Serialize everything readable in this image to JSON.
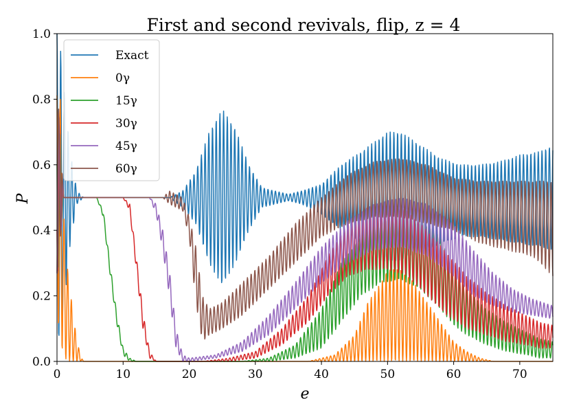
{
  "chart_data": {
    "type": "line",
    "title": "First and second revivals, flip, z = 4",
    "xlabel": "e",
    "ylabel": "P",
    "xlim": [
      0,
      75
    ],
    "ylim": [
      0,
      1
    ],
    "xticks": [
      0,
      10,
      20,
      30,
      40,
      50,
      60,
      70
    ],
    "yticks": [
      0.0,
      0.2,
      0.4,
      0.6,
      0.8,
      1.0
    ],
    "xtick_labels": [
      "0",
      "10",
      "20",
      "30",
      "40",
      "50",
      "60",
      "70"
    ],
    "ytick_labels": [
      "0.0",
      "0.2",
      "0.4",
      "0.6",
      "0.8",
      "1.0"
    ],
    "grid": false,
    "legend_position": "top-left",
    "series": [
      {
        "name": "Exact",
        "color": "#1f77b4",
        "envelope_upper": [
          [
            0,
            1.0
          ],
          [
            0.5,
            0.96
          ],
          [
            1,
            0.85
          ],
          [
            2,
            0.64
          ],
          [
            3,
            0.52
          ],
          [
            4,
            0.5
          ],
          [
            17,
            0.5
          ],
          [
            19,
            0.52
          ],
          [
            21,
            0.58
          ],
          [
            23,
            0.7
          ],
          [
            25,
            0.77
          ],
          [
            27,
            0.71
          ],
          [
            29,
            0.6
          ],
          [
            31,
            0.53
          ],
          [
            33,
            0.52
          ],
          [
            35,
            0.51
          ],
          [
            37,
            0.52
          ],
          [
            40,
            0.54
          ],
          [
            43,
            0.6
          ],
          [
            46,
            0.64
          ],
          [
            48,
            0.67
          ],
          [
            50,
            0.7
          ],
          [
            52,
            0.7
          ],
          [
            55,
            0.66
          ],
          [
            58,
            0.62
          ],
          [
            61,
            0.6
          ],
          [
            64,
            0.6
          ],
          [
            67,
            0.61
          ],
          [
            70,
            0.63
          ],
          [
            73,
            0.64
          ],
          [
            75,
            0.66
          ]
        ],
        "envelope_lower": [
          [
            0,
            0.02
          ],
          [
            0.5,
            0.1
          ],
          [
            1,
            0.15
          ],
          [
            2,
            0.36
          ],
          [
            3,
            0.48
          ],
          [
            4,
            0.5
          ],
          [
            17,
            0.5
          ],
          [
            19,
            0.47
          ],
          [
            21,
            0.42
          ],
          [
            23,
            0.3
          ],
          [
            25,
            0.23
          ],
          [
            27,
            0.3
          ],
          [
            29,
            0.4
          ],
          [
            31,
            0.47
          ],
          [
            33,
            0.48
          ],
          [
            35,
            0.49
          ],
          [
            37,
            0.48
          ],
          [
            40,
            0.45
          ],
          [
            43,
            0.4
          ],
          [
            46,
            0.36
          ],
          [
            48,
            0.32
          ],
          [
            50,
            0.3
          ],
          [
            52,
            0.31
          ],
          [
            55,
            0.33
          ],
          [
            58,
            0.36
          ],
          [
            61,
            0.38
          ],
          [
            64,
            0.38
          ],
          [
            67,
            0.37
          ],
          [
            70,
            0.36
          ],
          [
            73,
            0.35
          ],
          [
            75,
            0.34
          ]
        ],
        "oscillation_period": 0.56
      },
      {
        "name": "0γ",
        "color": "#ff7f0e",
        "envelope_upper": [
          [
            0,
            0.9
          ],
          [
            0.5,
            0.8
          ],
          [
            1,
            0.45
          ],
          [
            1.5,
            0.3
          ],
          [
            2,
            0.22
          ],
          [
            2.5,
            0.13
          ],
          [
            3,
            0.07
          ],
          [
            3.5,
            0.02
          ],
          [
            4,
            0.0
          ],
          [
            38,
            0.0
          ],
          [
            42,
            0.02
          ],
          [
            45,
            0.08
          ],
          [
            47,
            0.18
          ],
          [
            49,
            0.24
          ],
          [
            50,
            0.28
          ],
          [
            52,
            0.28
          ],
          [
            54,
            0.24
          ],
          [
            56,
            0.18
          ],
          [
            58,
            0.12
          ],
          [
            60,
            0.06
          ],
          [
            62,
            0.03
          ],
          [
            64,
            0.01
          ],
          [
            66,
            0.0
          ],
          [
            75,
            0.0
          ]
        ],
        "envelope_lower": [
          [
            0,
            0.15
          ],
          [
            0.5,
            0.05
          ],
          [
            1,
            0.02
          ],
          [
            1.5,
            0.0
          ],
          [
            75,
            0.0
          ]
        ],
        "oscillation_period": 0.56
      },
      {
        "name": "15γ",
        "color": "#2ca02c",
        "envelope_upper": [
          [
            0,
            0.85
          ],
          [
            1,
            0.5
          ],
          [
            6,
            0.5
          ],
          [
            7,
            0.46
          ],
          [
            8,
            0.3
          ],
          [
            9,
            0.15
          ],
          [
            10,
            0.04
          ],
          [
            11,
            0.01
          ],
          [
            12,
            0.0
          ],
          [
            28,
            0.0
          ],
          [
            32,
            0.01
          ],
          [
            36,
            0.05
          ],
          [
            40,
            0.16
          ],
          [
            43,
            0.3
          ],
          [
            46,
            0.38
          ],
          [
            49,
            0.43
          ],
          [
            52,
            0.45
          ],
          [
            55,
            0.43
          ],
          [
            58,
            0.38
          ],
          [
            60,
            0.28
          ],
          [
            62,
            0.22
          ],
          [
            65,
            0.16
          ],
          [
            68,
            0.12
          ],
          [
            71,
            0.09
          ],
          [
            73,
            0.07
          ],
          [
            75,
            0.06
          ]
        ],
        "envelope_lower": [
          [
            0,
            0.25
          ],
          [
            1,
            0.5
          ],
          [
            6,
            0.5
          ],
          [
            7,
            0.44
          ],
          [
            8,
            0.27
          ],
          [
            9,
            0.12
          ],
          [
            10,
            0.02
          ],
          [
            11,
            0.0
          ],
          [
            28,
            0.0
          ],
          [
            32,
            0.0
          ],
          [
            36,
            0.01
          ],
          [
            40,
            0.04
          ],
          [
            43,
            0.12
          ],
          [
            46,
            0.2
          ],
          [
            49,
            0.24
          ],
          [
            52,
            0.25
          ],
          [
            55,
            0.22
          ],
          [
            58,
            0.16
          ],
          [
            60,
            0.11
          ],
          [
            62,
            0.08
          ],
          [
            65,
            0.05
          ],
          [
            68,
            0.03
          ],
          [
            71,
            0.02
          ],
          [
            73,
            0.01
          ],
          [
            75,
            0.01
          ]
        ],
        "oscillation_period": 0.56
      },
      {
        "name": "30γ",
        "color": "#d62728",
        "envelope_upper": [
          [
            0,
            0.85
          ],
          [
            1,
            0.5
          ],
          [
            10,
            0.5
          ],
          [
            11,
            0.48
          ],
          [
            12,
            0.32
          ],
          [
            13,
            0.15
          ],
          [
            14,
            0.03
          ],
          [
            15,
            0.0
          ],
          [
            22,
            0.0
          ],
          [
            26,
            0.01
          ],
          [
            30,
            0.03
          ],
          [
            34,
            0.1
          ],
          [
            38,
            0.2
          ],
          [
            41,
            0.32
          ],
          [
            44,
            0.42
          ],
          [
            47,
            0.47
          ],
          [
            50,
            0.48
          ],
          [
            53,
            0.46
          ],
          [
            56,
            0.4
          ],
          [
            59,
            0.33
          ],
          [
            62,
            0.26
          ],
          [
            65,
            0.21
          ],
          [
            68,
            0.17
          ],
          [
            71,
            0.14
          ],
          [
            73,
            0.12
          ],
          [
            75,
            0.11
          ]
        ],
        "envelope_lower": [
          [
            0,
            0.25
          ],
          [
            1,
            0.5
          ],
          [
            10,
            0.5
          ],
          [
            11,
            0.46
          ],
          [
            12,
            0.28
          ],
          [
            13,
            0.1
          ],
          [
            14,
            0.01
          ],
          [
            15,
            0.0
          ],
          [
            22,
            0.0
          ],
          [
            26,
            0.0
          ],
          [
            30,
            0.01
          ],
          [
            34,
            0.05
          ],
          [
            38,
            0.12
          ],
          [
            41,
            0.2
          ],
          [
            44,
            0.26
          ],
          [
            47,
            0.28
          ],
          [
            50,
            0.28
          ],
          [
            53,
            0.26
          ],
          [
            56,
            0.2
          ],
          [
            59,
            0.14
          ],
          [
            62,
            0.1
          ],
          [
            65,
            0.08
          ],
          [
            68,
            0.06
          ],
          [
            71,
            0.05
          ],
          [
            73,
            0.04
          ],
          [
            75,
            0.04
          ]
        ],
        "oscillation_period": 0.56
      },
      {
        "name": "45γ",
        "color": "#9467bd",
        "envelope_upper": [
          [
            0,
            0.85
          ],
          [
            1,
            0.5
          ],
          [
            14,
            0.5
          ],
          [
            15,
            0.48
          ],
          [
            16,
            0.4
          ],
          [
            17,
            0.28
          ],
          [
            18,
            0.1
          ],
          [
            19,
            0.02
          ],
          [
            20,
            0.01
          ],
          [
            24,
            0.02
          ],
          [
            28,
            0.06
          ],
          [
            32,
            0.14
          ],
          [
            36,
            0.24
          ],
          [
            40,
            0.35
          ],
          [
            44,
            0.43
          ],
          [
            48,
            0.48
          ],
          [
            52,
            0.5
          ],
          [
            56,
            0.48
          ],
          [
            60,
            0.42
          ],
          [
            63,
            0.34
          ],
          [
            66,
            0.27
          ],
          [
            69,
            0.22
          ],
          [
            72,
            0.19
          ],
          [
            75,
            0.17
          ]
        ],
        "envelope_lower": [
          [
            0,
            0.25
          ],
          [
            1,
            0.5
          ],
          [
            14,
            0.5
          ],
          [
            15,
            0.45
          ],
          [
            16,
            0.34
          ],
          [
            17,
            0.2
          ],
          [
            18,
            0.04
          ],
          [
            19,
            0.0
          ],
          [
            20,
            0.0
          ],
          [
            24,
            0.01
          ],
          [
            28,
            0.03
          ],
          [
            32,
            0.08
          ],
          [
            36,
            0.16
          ],
          [
            40,
            0.24
          ],
          [
            44,
            0.3
          ],
          [
            48,
            0.34
          ],
          [
            52,
            0.35
          ],
          [
            56,
            0.32
          ],
          [
            60,
            0.26
          ],
          [
            63,
            0.2
          ],
          [
            66,
            0.17
          ],
          [
            69,
            0.15
          ],
          [
            72,
            0.14
          ],
          [
            75,
            0.13
          ]
        ],
        "oscillation_period": 0.56
      },
      {
        "name": "60γ",
        "color": "#8c564b",
        "envelope_upper": [
          [
            0,
            0.86
          ],
          [
            1,
            0.5
          ],
          [
            16,
            0.5
          ],
          [
            17,
            0.52
          ],
          [
            19,
            0.5
          ],
          [
            20,
            0.44
          ],
          [
            21,
            0.35
          ],
          [
            22,
            0.2
          ],
          [
            23,
            0.16
          ],
          [
            25,
            0.18
          ],
          [
            28,
            0.24
          ],
          [
            32,
            0.32
          ],
          [
            36,
            0.42
          ],
          [
            40,
            0.5
          ],
          [
            44,
            0.57
          ],
          [
            48,
            0.61
          ],
          [
            52,
            0.62
          ],
          [
            56,
            0.6
          ],
          [
            60,
            0.56
          ],
          [
            64,
            0.55
          ],
          [
            68,
            0.55
          ],
          [
            72,
            0.55
          ],
          [
            75,
            0.55
          ]
        ],
        "envelope_lower": [
          [
            0,
            0.25
          ],
          [
            1,
            0.5
          ],
          [
            16,
            0.5
          ],
          [
            17,
            0.48
          ],
          [
            19,
            0.46
          ],
          [
            20,
            0.38
          ],
          [
            21,
            0.18
          ],
          [
            22,
            0.06
          ],
          [
            23,
            0.08
          ],
          [
            25,
            0.1
          ],
          [
            28,
            0.14
          ],
          [
            32,
            0.22
          ],
          [
            36,
            0.3
          ],
          [
            40,
            0.38
          ],
          [
            44,
            0.42
          ],
          [
            48,
            0.44
          ],
          [
            52,
            0.44
          ],
          [
            56,
            0.42
          ],
          [
            60,
            0.4
          ],
          [
            64,
            0.36
          ],
          [
            68,
            0.34
          ],
          [
            72,
            0.32
          ],
          [
            75,
            0.26
          ]
        ],
        "oscillation_period": 0.56
      }
    ]
  }
}
